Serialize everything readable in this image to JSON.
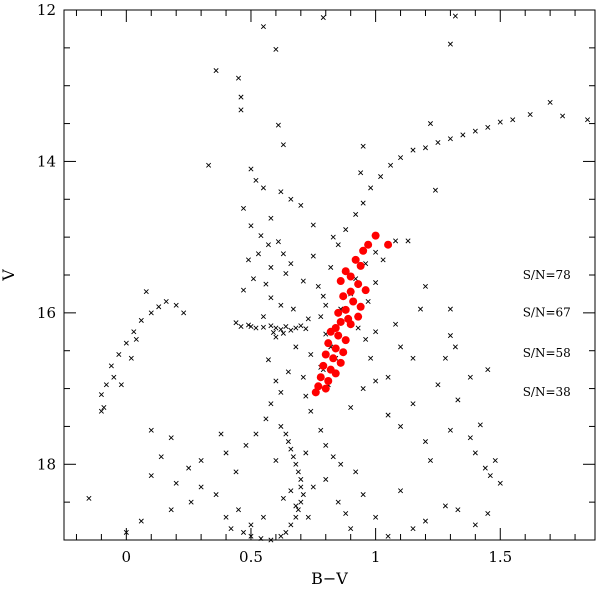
{
  "chart_data": {
    "type": "scatter",
    "title": "",
    "xlabel": "B−V",
    "ylabel": "V",
    "xlim": [
      -0.25,
      1.88
    ],
    "ylim": [
      19.0,
      12.0
    ],
    "y_inverted": true,
    "grid": false,
    "x_ticks": [
      {
        "value": 0,
        "label": "0"
      },
      {
        "value": 0.5,
        "label": "0.5"
      },
      {
        "value": 1,
        "label": "1"
      },
      {
        "value": 1.5,
        "label": "1.5"
      }
    ],
    "y_ticks": [
      {
        "value": 12,
        "label": "12"
      },
      {
        "value": 14,
        "label": "14"
      },
      {
        "value": 16,
        "label": "16"
      },
      {
        "value": 18,
        "label": "18"
      }
    ],
    "annotations": [
      {
        "text": "S/N=78",
        "x": 1.59,
        "y": 15.55
      },
      {
        "text": "S/N=67",
        "x": 1.59,
        "y": 16.05
      },
      {
        "text": "S/N=58",
        "x": 1.59,
        "y": 16.58
      },
      {
        "text": "S/N=38",
        "x": 1.59,
        "y": 17.1
      }
    ],
    "series": [
      {
        "marker": "cross",
        "color": "#000000",
        "points": [
          [
            0.55,
            12.22
          ],
          [
            0.6,
            12.52
          ],
          [
            0.79,
            12.1
          ],
          [
            1.32,
            12.08
          ],
          [
            1.3,
            12.45
          ],
          [
            0.45,
            12.9
          ],
          [
            0.36,
            12.8
          ],
          [
            0.46,
            13.15
          ],
          [
            0.46,
            13.32
          ],
          [
            0.61,
            13.52
          ],
          [
            1.22,
            13.5
          ],
          [
            0.63,
            13.78
          ],
          [
            0.33,
            14.05
          ],
          [
            0.95,
            13.8
          ],
          [
            1.24,
            14.38
          ],
          [
            0.94,
            14.15
          ],
          [
            0.5,
            14.1
          ],
          [
            0.52,
            14.25
          ],
          [
            0.55,
            14.35
          ],
          [
            0.62,
            14.4
          ],
          [
            0.66,
            14.5
          ],
          [
            0.47,
            14.62
          ],
          [
            0.58,
            14.75
          ],
          [
            0.7,
            14.58
          ],
          [
            0.75,
            14.84
          ],
          [
            0.5,
            14.85
          ],
          [
            0.54,
            14.98
          ],
          [
            0.57,
            15.1
          ],
          [
            0.61,
            15.06
          ],
          [
            0.53,
            15.22
          ],
          [
            0.63,
            15.22
          ],
          [
            0.49,
            15.3
          ],
          [
            0.58,
            15.4
          ],
          [
            0.66,
            15.35
          ],
          [
            0.51,
            15.55
          ],
          [
            0.56,
            15.62
          ],
          [
            0.64,
            15.48
          ],
          [
            0.71,
            15.58
          ],
          [
            0.47,
            15.7
          ],
          [
            0.58,
            15.8
          ],
          [
            0.62,
            15.9
          ],
          [
            0.67,
            15.95
          ],
          [
            0.55,
            16.05
          ],
          [
            0.73,
            16.08
          ],
          [
            0.5,
            16.18
          ],
          [
            0.6,
            16.32
          ],
          [
            0.68,
            16.45
          ],
          [
            0.74,
            16.55
          ],
          [
            0.57,
            16.62
          ],
          [
            0.78,
            16.72
          ],
          [
            0.65,
            16.78
          ],
          [
            0.71,
            16.85
          ],
          [
            0.83,
            15.0
          ],
          [
            0.85,
            15.1
          ],
          [
            0.75,
            15.25
          ],
          [
            0.82,
            15.4
          ],
          [
            0.44,
            16.13
          ],
          [
            0.46,
            16.18
          ],
          [
            0.49,
            16.16
          ],
          [
            0.52,
            16.2
          ],
          [
            0.55,
            16.19
          ],
          [
            0.58,
            16.17
          ],
          [
            0.6,
            16.2
          ],
          [
            0.62,
            16.22
          ],
          [
            0.64,
            16.18
          ],
          [
            0.66,
            16.23
          ],
          [
            0.68,
            16.2
          ],
          [
            0.7,
            16.17
          ],
          [
            0.72,
            16.21
          ],
          [
            0.59,
            16.26
          ],
          [
            0.63,
            16.27
          ],
          [
            -0.05,
            16.85
          ],
          [
            -0.08,
            16.95
          ],
          [
            -0.1,
            17.08
          ],
          [
            -0.09,
            17.25
          ],
          [
            -0.06,
            16.7
          ],
          [
            -0.03,
            16.55
          ],
          [
            0.0,
            16.4
          ],
          [
            0.03,
            16.25
          ],
          [
            0.06,
            16.1
          ],
          [
            0.1,
            16.0
          ],
          [
            0.13,
            15.92
          ],
          [
            0.16,
            15.85
          ],
          [
            0.08,
            15.72
          ],
          [
            0.2,
            15.9
          ],
          [
            0.23,
            16.0
          ],
          [
            0.02,
            16.6
          ],
          [
            -0.02,
            16.95
          ],
          [
            0.04,
            16.35
          ],
          [
            -0.1,
            17.3
          ],
          [
            0.77,
            15.65
          ],
          [
            0.79,
            15.78
          ],
          [
            0.8,
            15.9
          ],
          [
            0.78,
            16.05
          ],
          [
            0.8,
            16.28
          ],
          [
            0.82,
            16.45
          ],
          [
            0.84,
            16.6
          ],
          [
            0.79,
            16.75
          ],
          [
            0.81,
            16.95
          ],
          [
            0.88,
            14.9
          ],
          [
            0.92,
            14.7
          ],
          [
            0.95,
            14.55
          ],
          [
            0.98,
            14.35
          ],
          [
            1.02,
            14.2
          ],
          [
            1.06,
            14.05
          ],
          [
            1.1,
            13.95
          ],
          [
            1.15,
            13.85
          ],
          [
            1.2,
            13.82
          ],
          [
            1.25,
            13.75
          ],
          [
            1.3,
            13.7
          ],
          [
            1.35,
            13.65
          ],
          [
            1.4,
            13.6
          ],
          [
            1.45,
            13.55
          ],
          [
            1.5,
            13.48
          ],
          [
            1.55,
            13.45
          ],
          [
            1.62,
            13.38
          ],
          [
            1.7,
            13.22
          ],
          [
            1.75,
            13.4
          ],
          [
            1.85,
            13.45
          ],
          [
            0.62,
            17.5
          ],
          [
            0.64,
            17.6
          ],
          [
            0.65,
            17.7
          ],
          [
            0.66,
            17.8
          ],
          [
            0.67,
            17.9
          ],
          [
            0.68,
            18.0
          ],
          [
            0.69,
            18.1
          ],
          [
            0.7,
            18.2
          ],
          [
            0.7,
            18.3
          ],
          [
            0.71,
            18.4
          ],
          [
            0.7,
            18.5
          ],
          [
            0.69,
            18.6
          ],
          [
            0.68,
            18.7
          ],
          [
            0.66,
            18.8
          ],
          [
            0.64,
            18.9
          ],
          [
            0.62,
            18.95
          ],
          [
            0.58,
            19.0
          ],
          [
            0.54,
            18.98
          ],
          [
            0.5,
            18.95
          ],
          [
            0.47,
            18.9
          ],
          [
            0.6,
            17.95
          ],
          [
            0.72,
            17.85
          ],
          [
            0.75,
            18.3
          ],
          [
            0.73,
            18.7
          ],
          [
            0.63,
            18.45
          ],
          [
            0.66,
            18.35
          ],
          [
            0.68,
            18.55
          ],
          [
            0.55,
            18.7
          ],
          [
            0.5,
            18.8
          ],
          [
            0.45,
            18.6
          ],
          [
            0.42,
            18.85
          ],
          [
            0.4,
            18.7
          ],
          [
            0.36,
            18.4
          ],
          [
            0.3,
            18.3
          ],
          [
            0.26,
            18.5
          ],
          [
            0.2,
            18.25
          ],
          [
            0.18,
            18.6
          ],
          [
            0.1,
            18.15
          ],
          [
            0.06,
            18.75
          ],
          [
            0.0,
            18.9
          ],
          [
            -0.15,
            18.45
          ],
          [
            0.8,
            18.2
          ],
          [
            0.85,
            18.5
          ],
          [
            0.9,
            18.85
          ],
          [
            0.95,
            18.4
          ],
          [
            1.0,
            18.7
          ],
          [
            1.05,
            18.95
          ],
          [
            1.1,
            18.35
          ],
          [
            1.2,
            18.75
          ],
          [
            1.28,
            18.55
          ],
          [
            1.33,
            18.6
          ],
          [
            1.4,
            18.8
          ],
          [
            1.45,
            18.65
          ],
          [
            1.15,
            18.85
          ],
          [
            0.88,
            18.65
          ],
          [
            0.92,
            18.1
          ],
          [
            1.05,
            17.35
          ],
          [
            1.1,
            17.5
          ],
          [
            1.15,
            17.2
          ],
          [
            1.2,
            17.7
          ],
          [
            1.22,
            17.95
          ],
          [
            1.3,
            17.55
          ],
          [
            1.33,
            17.15
          ],
          [
            1.38,
            17.65
          ],
          [
            1.42,
            17.48
          ],
          [
            1.44,
            18.05
          ],
          [
            1.46,
            18.15
          ],
          [
            1.48,
            17.95
          ],
          [
            1.5,
            18.25
          ],
          [
            1.4,
            17.85
          ],
          [
            1.25,
            16.95
          ],
          [
            1.28,
            16.6
          ],
          [
            1.15,
            16.6
          ],
          [
            1.1,
            16.45
          ],
          [
            1.05,
            16.85
          ],
          [
            1.0,
            16.25
          ],
          [
            0.4,
            17.85
          ],
          [
            0.44,
            18.1
          ],
          [
            0.52,
            17.6
          ],
          [
            0.38,
            17.6
          ],
          [
            0.18,
            17.65
          ],
          [
            0.1,
            17.55
          ],
          [
            0.14,
            17.9
          ],
          [
            0.25,
            18.05
          ],
          [
            0.3,
            17.95
          ],
          [
            0.48,
            17.75
          ],
          [
            0.56,
            17.4
          ],
          [
            0.58,
            17.2
          ],
          [
            0.62,
            17.05
          ],
          [
            0.6,
            16.9
          ],
          [
            0.72,
            17.1
          ],
          [
            0.74,
            17.3
          ],
          [
            0.78,
            17.55
          ],
          [
            0.8,
            17.75
          ],
          [
            0.83,
            17.9
          ],
          [
            0.86,
            18.0
          ],
          [
            0.9,
            17.25
          ],
          [
            0.95,
            17.0
          ],
          [
            1.0,
            16.9
          ],
          [
            0.98,
            16.6
          ],
          [
            0.96,
            16.35
          ],
          [
            0.93,
            16.2
          ],
          [
            0.97,
            15.85
          ],
          [
            1.0,
            15.6
          ],
          [
            1.03,
            15.3
          ],
          [
            1.08,
            15.05
          ],
          [
            1.0,
            15.2
          ],
          [
            0.96,
            15.35
          ],
          [
            0.92,
            15.55
          ],
          [
            0.9,
            15.75
          ],
          [
            0.86,
            15.95
          ],
          [
            1.13,
            15.05
          ],
          [
            1.2,
            15.65
          ],
          [
            1.18,
            15.95
          ],
          [
            1.08,
            16.15
          ],
          [
            1.3,
            16.3
          ],
          [
            1.32,
            16.45
          ],
          [
            1.38,
            16.85
          ],
          [
            1.45,
            16.75
          ],
          [
            1.3,
            15.95
          ]
        ]
      },
      {
        "marker": "circle",
        "color": "#ff0000",
        "points": [
          [
            1.0,
            14.98
          ],
          [
            1.05,
            15.1
          ],
          [
            0.97,
            15.1
          ],
          [
            0.95,
            15.18
          ],
          [
            0.92,
            15.3
          ],
          [
            0.94,
            15.38
          ],
          [
            0.88,
            15.45
          ],
          [
            0.9,
            15.52
          ],
          [
            0.86,
            15.58
          ],
          [
            0.93,
            15.62
          ],
          [
            0.96,
            15.7
          ],
          [
            0.9,
            15.72
          ],
          [
            0.87,
            15.78
          ],
          [
            0.91,
            15.85
          ],
          [
            0.94,
            15.92
          ],
          [
            0.88,
            15.96
          ],
          [
            0.85,
            16.0
          ],
          [
            0.89,
            16.08
          ],
          [
            0.86,
            16.12
          ],
          [
            0.84,
            16.2
          ],
          [
            0.9,
            16.15
          ],
          [
            0.82,
            16.25
          ],
          [
            0.85,
            16.3
          ],
          [
            0.88,
            16.36
          ],
          [
            0.81,
            16.4
          ],
          [
            0.84,
            16.47
          ],
          [
            0.87,
            16.52
          ],
          [
            0.8,
            16.55
          ],
          [
            0.83,
            16.6
          ],
          [
            0.86,
            16.66
          ],
          [
            0.79,
            16.7
          ],
          [
            0.82,
            16.75
          ],
          [
            0.84,
            16.8
          ],
          [
            0.78,
            16.85
          ],
          [
            0.81,
            16.9
          ],
          [
            0.77,
            16.97
          ],
          [
            0.8,
            17.0
          ],
          [
            0.76,
            17.05
          ],
          [
            0.93,
            16.05
          ]
        ]
      }
    ]
  }
}
